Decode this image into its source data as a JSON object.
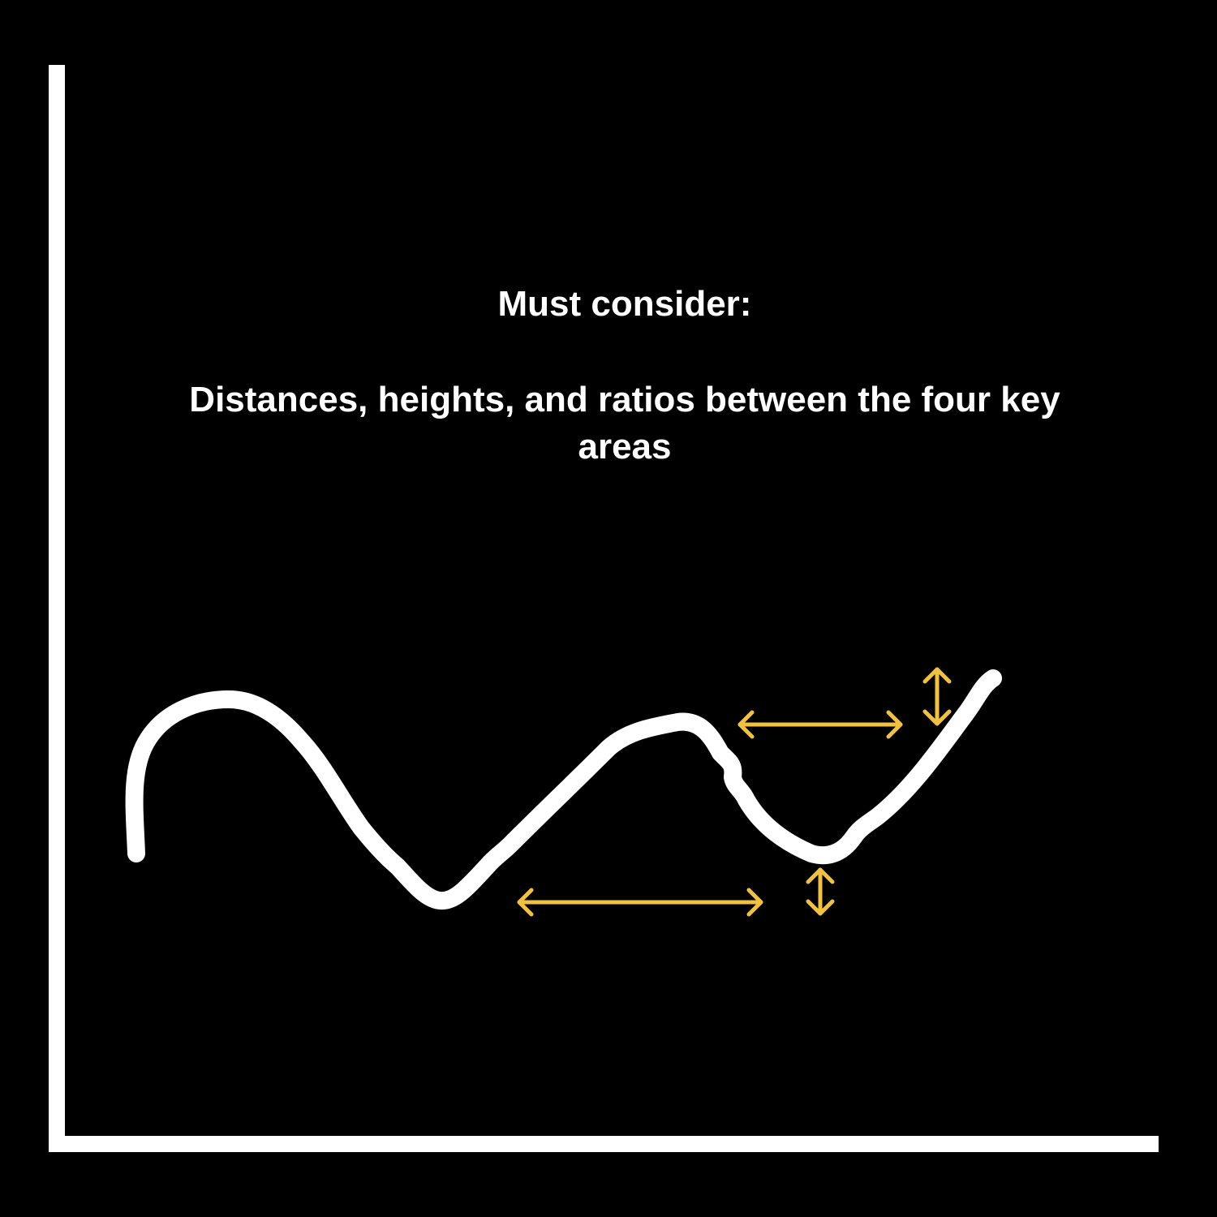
{
  "heading": {
    "label": "Must consider:",
    "body": "Distances, heights, and ratios between the four key areas"
  },
  "colors": {
    "background": "#000000",
    "axes": "#ffffff",
    "curve": "#ffffff",
    "markers": "#f0c240"
  },
  "markers": [
    {
      "name": "trough-to-peak-distance-arrow",
      "kind": "horizontal-double-arrow"
    },
    {
      "name": "peak-to-end-distance-arrow",
      "kind": "horizontal-double-arrow"
    },
    {
      "name": "end-height-arrow",
      "kind": "vertical-double-arrow"
    },
    {
      "name": "trough-height-arrow",
      "kind": "vertical-double-arrow"
    }
  ]
}
